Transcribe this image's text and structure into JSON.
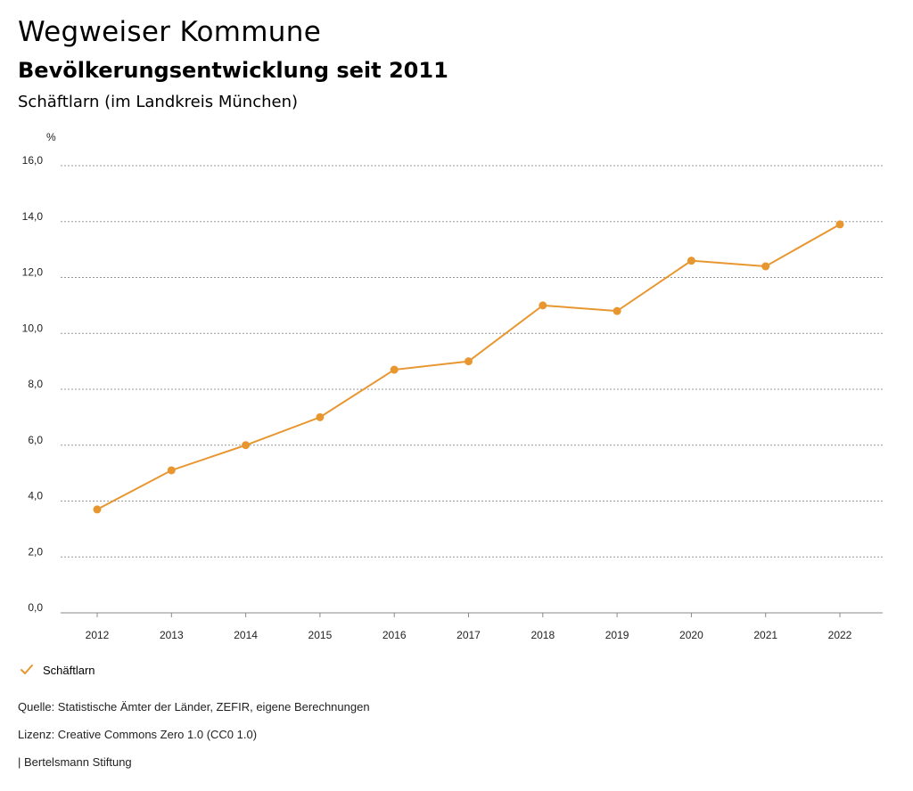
{
  "header": {
    "title": "Wegweiser Kommune",
    "subtitle": "Bevölkerungsentwicklung seit 2011",
    "region": "Schäftlarn (im Landkreis München)"
  },
  "chart_data": {
    "type": "line",
    "ylabel": "%",
    "ylim": [
      0,
      16
    ],
    "yticks": [
      "0,0",
      "2,0",
      "4,0",
      "6,0",
      "8,0",
      "10,0",
      "12,0",
      "14,0",
      "16,0"
    ],
    "grid": true,
    "categories": [
      "2012",
      "2013",
      "2014",
      "2015",
      "2016",
      "2017",
      "2018",
      "2019",
      "2020",
      "2021",
      "2022"
    ],
    "series": [
      {
        "name": "Schäftlarn",
        "color": "#e8962f",
        "values": [
          3.7,
          5.1,
          6.0,
          7.0,
          8.7,
          9.0,
          11.0,
          10.8,
          12.6,
          12.4,
          13.9
        ]
      }
    ],
    "legend_position": "bottom-left"
  },
  "legend": {
    "label": "Schäftlarn",
    "icon": "check-icon"
  },
  "footer": {
    "source": "Quelle: Statistische Ämter der Länder, ZEFIR, eigene Berechnungen",
    "license": "Lizenz: Creative Commons Zero 1.0 (CC0 1.0)",
    "publisher": "| Bertelsmann Stiftung"
  }
}
